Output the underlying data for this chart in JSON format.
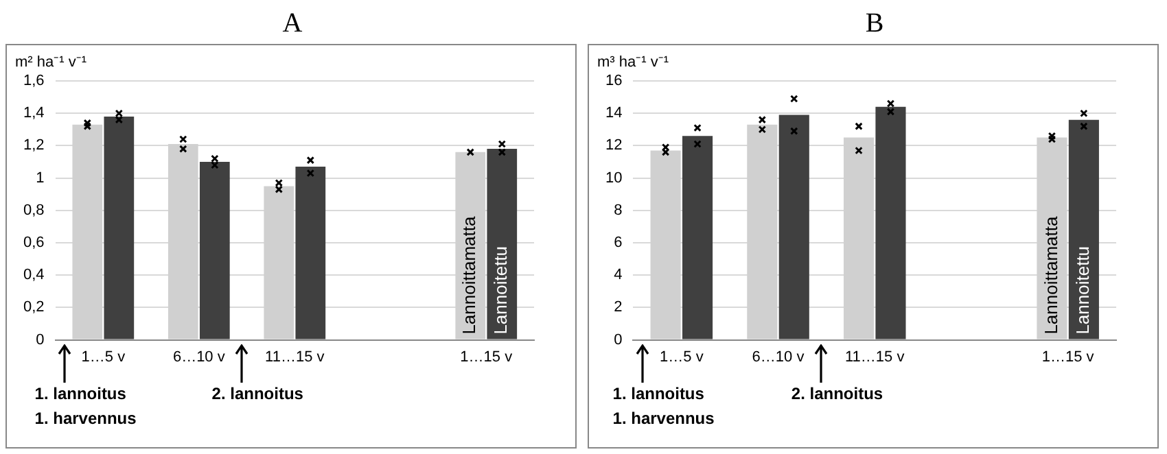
{
  "chart_data": [
    {
      "type": "bar",
      "title": "A",
      "ylabel": "m² ha⁻¹ v⁻¹",
      "categories": [
        "1…5 v",
        "6…10 v",
        "11…15 v",
        null,
        "1…15 v"
      ],
      "series": [
        {
          "name": "Lannoittamatta",
          "color": "#d0d0d0",
          "values": [
            1.33,
            1.21,
            0.95,
            null,
            1.16
          ]
        },
        {
          "name": "Lannoitettu",
          "color": "#404040",
          "values": [
            1.38,
            1.1,
            1.07,
            null,
            1.18
          ]
        },
        {
          "type": "scatter",
          "color": "#000000",
          "x": [
            "1…5 v",
            "6…10 v",
            "11…15 v",
            "1…15 v"
          ],
          "values": [
            1.34,
            1.24,
            0.97,
            1.16
          ]
        },
        {
          "type": "scatter",
          "color": "#000000",
          "x": [
            "1…5 v",
            "6…10 v",
            "11…15 v",
            "1…15 v"
          ],
          "values": [
            1.32,
            1.18,
            0.93,
            null
          ]
        },
        {
          "type": "scatter",
          "color": "#000000",
          "x": [
            "1…5 v",
            "6…10 v",
            "11…15 v",
            "1…15 v"
          ],
          "values": [
            1.4,
            1.12,
            1.11,
            1.21
          ]
        },
        {
          "type": "scatter",
          "color": "#000000",
          "x": [
            "1…5 v",
            "6…10 v",
            "11…15 v",
            "1…15 v"
          ],
          "values": [
            1.36,
            1.08,
            1.03,
            1.16
          ]
        }
      ],
      "ylim": [
        0,
        1.6
      ],
      "yticks": [
        0,
        {
          "value": 0.2,
          "label": "0,2"
        },
        {
          "value": 0.4,
          "label": "0,4"
        },
        {
          "value": 0.6,
          "label": "0,6"
        },
        {
          "value": 0.8,
          "label": "0,8"
        },
        1,
        {
          "value": 1.2,
          "label": "1,2"
        },
        {
          "value": 1.4,
          "label": "1,4"
        },
        {
          "value": 1.6,
          "label": "1,6"
        }
      ],
      "grid": "y",
      "legend": false,
      "marker": "cross",
      "annotations": [
        "1. lannoitus",
        "1. harvennus",
        "2. lannoitus"
      ]
    },
    {
      "type": "bar",
      "title": "B",
      "ylabel": "m³ ha⁻¹ v⁻¹",
      "categories": [
        "1…5 v",
        "6…10 v",
        "11…15 v",
        null,
        "1…15 v"
      ],
      "series": [
        {
          "name": "Lannoittamatta",
          "color": "#d0d0d0",
          "values": [
            11.7,
            13.3,
            12.5,
            null,
            12.5
          ]
        },
        {
          "name": "Lannoitettu",
          "color": "#404040",
          "values": [
            12.6,
            13.9,
            14.4,
            null,
            13.6
          ]
        },
        {
          "type": "scatter",
          "color": "#000000",
          "x": [
            "1…5 v",
            "6…10 v",
            "11…15 v",
            "1…15 v"
          ],
          "values": [
            11.9,
            13.6,
            13.2,
            12.6
          ]
        },
        {
          "type": "scatter",
          "color": "#000000",
          "x": [
            "1…5 v",
            "6…10 v",
            "11…15 v",
            "1…15 v"
          ],
          "values": [
            11.6,
            13.0,
            11.7,
            12.4
          ]
        },
        {
          "type": "scatter",
          "color": "#000000",
          "x": [
            "1…5 v",
            "6…10 v",
            "11…15 v",
            "1…15 v"
          ],
          "values": [
            13.1,
            14.9,
            14.6,
            14.0
          ]
        },
        {
          "type": "scatter",
          "color": "#000000",
          "x": [
            "1…5 v",
            "6…10 v",
            "11…15 v",
            "1…15 v"
          ],
          "values": [
            12.1,
            12.9,
            14.1,
            13.2
          ]
        }
      ],
      "ylim": [
        0,
        16
      ],
      "yticks": [
        0,
        2,
        4,
        6,
        8,
        10,
        12,
        14,
        16
      ],
      "grid": "y",
      "legend": false,
      "marker": "cross",
      "annotations": [
        "1. lannoitus",
        "1. harvennus",
        "2. lannoitus"
      ]
    }
  ]
}
